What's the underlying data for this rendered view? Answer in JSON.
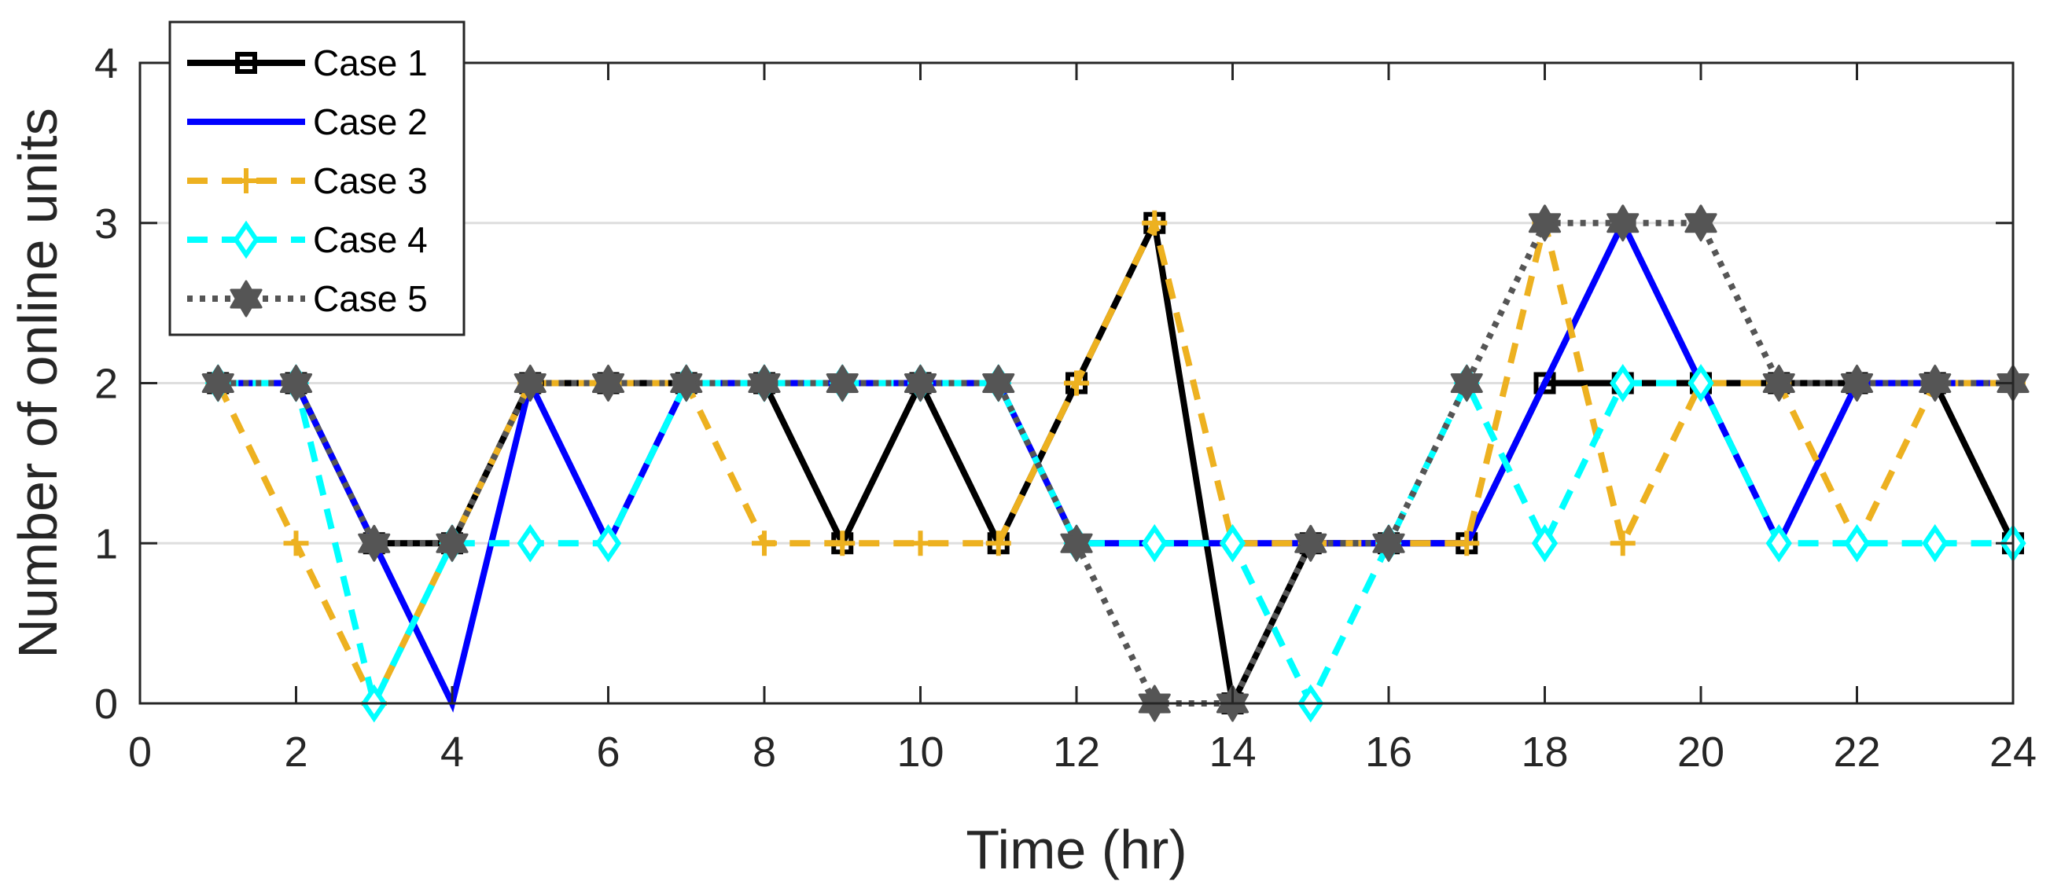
{
  "chart_data": {
    "type": "line",
    "title": "",
    "xlabel": "Time (hr)",
    "ylabel": "Number of online units",
    "xlim": [
      0,
      24
    ],
    "ylim": [
      0,
      4
    ],
    "xticks": [
      0,
      2,
      4,
      6,
      8,
      10,
      12,
      14,
      16,
      18,
      20,
      22,
      24
    ],
    "yticks": [
      0,
      1,
      2,
      3,
      4
    ],
    "grid": "horizontal",
    "legend_position": "top-left",
    "x": [
      1,
      2,
      3,
      4,
      5,
      6,
      7,
      8,
      9,
      10,
      11,
      12,
      13,
      14,
      15,
      16,
      17,
      18,
      19,
      20,
      21,
      22,
      23,
      24
    ],
    "series": [
      {
        "name": "Case 1",
        "color": "#000000",
        "dash": "solid",
        "marker": "square",
        "values": [
          2,
          2,
          1,
          1,
          2,
          2,
          2,
          2,
          1,
          2,
          1,
          2,
          3,
          0,
          1,
          1,
          1,
          2,
          2,
          2,
          2,
          2,
          2,
          1
        ]
      },
      {
        "name": "Case 2",
        "color": "#0000ff",
        "dash": "solid",
        "marker": "none",
        "values": [
          2,
          2,
          1,
          0,
          2,
          1,
          2,
          2,
          2,
          2,
          2,
          1,
          1,
          1,
          1,
          1,
          1,
          2,
          3,
          2,
          1,
          2,
          2,
          2
        ]
      },
      {
        "name": "Case 3",
        "color": "#edb120",
        "dash": "dashed",
        "marker": "plus",
        "values": [
          2,
          1,
          0,
          1,
          2,
          2,
          2,
          1,
          1,
          1,
          1,
          2,
          3,
          1,
          1,
          1,
          1,
          3,
          1,
          2,
          2,
          1,
          2,
          2
        ]
      },
      {
        "name": "Case 4",
        "color": "#00ffff",
        "dash": "dashed",
        "marker": "diamond",
        "values": [
          2,
          2,
          0,
          1,
          1,
          1,
          2,
          2,
          2,
          2,
          2,
          1,
          1,
          1,
          0,
          1,
          2,
          1,
          2,
          2,
          1,
          1,
          1,
          1
        ]
      },
      {
        "name": "Case 5",
        "color": "#555555",
        "dash": "dotted",
        "marker": "hexagram",
        "values": [
          2,
          2,
          1,
          1,
          2,
          2,
          2,
          2,
          2,
          2,
          2,
          1,
          0,
          0,
          1,
          1,
          2,
          3,
          3,
          3,
          2,
          2,
          2,
          2
        ]
      }
    ]
  }
}
